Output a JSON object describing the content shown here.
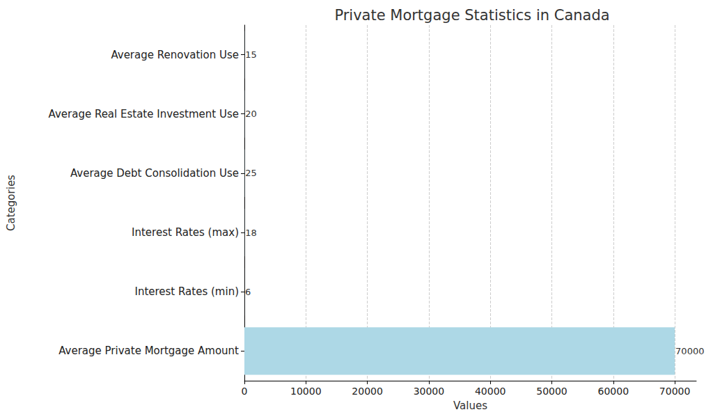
{
  "chart_data": {
    "type": "bar",
    "orientation": "horizontal",
    "title": "Private Mortgage Statistics in Canada",
    "x_label": "Values",
    "y_label": "Categories",
    "categories": [
      "Average Private Mortgage Amount",
      "Interest Rates (min)",
      "Interest Rates (max)",
      "Average Debt Consolidation Use",
      "Average Real Estate Investment Use",
      "Average Renovation Use"
    ],
    "values": [
      70000,
      6,
      18,
      25,
      20,
      15
    ],
    "color": "#add8e6",
    "xlim": [
      0,
      73500
    ],
    "xticks": [
      0,
      10000,
      20000,
      30000,
      40000,
      50000,
      60000,
      70000
    ],
    "grid": true,
    "data_labels": true
  }
}
